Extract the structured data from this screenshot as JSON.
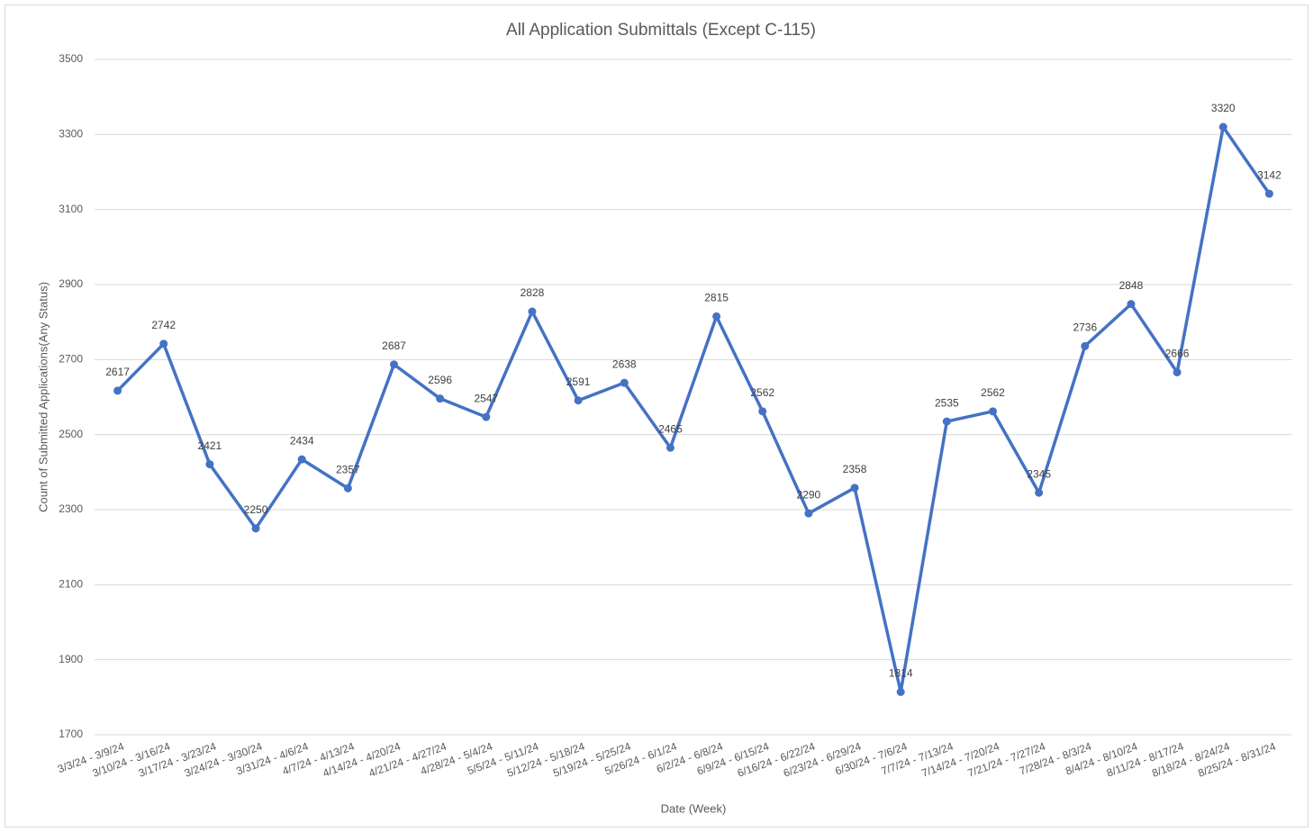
{
  "chart_data": {
    "type": "line",
    "title": "All Application Submittals (Except C-115)",
    "x_label": "Date (Week)",
    "y_label": "Count of Submitted Applications(Any Status)",
    "categories": [
      "3/3/24 - 3/9/24",
      "3/10/24 - 3/16/24",
      "3/17/24 - 3/23/24",
      "3/24/24 - 3/30/24",
      "3/31/24 - 4/6/24",
      "4/7/24 - 4/13/24",
      "4/14/24 - 4/20/24",
      "4/21/24 - 4/27/24",
      "4/28/24 - 5/4/24",
      "5/5/24 - 5/11/24",
      "5/12/24 - 5/18/24",
      "5/19/24 - 5/25/24",
      "5/26/24 - 6/1/24",
      "6/2/24 - 6/8/24",
      "6/9/24 - 6/15/24",
      "6/16/24 - 6/22/24",
      "6/23/24 - 6/29/24",
      "6/30/24 - 7/6/24",
      "7/7/24 - 7/13/24",
      "7/14/24 - 7/20/24",
      "7/21/24 - 7/27/24",
      "7/28/24 - 8/3/24",
      "8/4/24 - 8/10/24",
      "8/11/24 - 8/17/24",
      "8/18/24 - 8/24/24",
      "8/25/24 - 8/31/24"
    ],
    "values": [
      2617,
      2742,
      2421,
      2250,
      2434,
      2357,
      2687,
      2596,
      2547,
      2828,
      2591,
      2638,
      2465,
      2815,
      2562,
      2290,
      2358,
      1814,
      2535,
      2562,
      2345,
      2736,
      2848,
      2666,
      3320,
      3142
    ],
    "color": "#4472c4",
    "ylim": [
      1700,
      3500
    ],
    "yticks": [
      1700,
      1900,
      2100,
      2300,
      2500,
      2700,
      2900,
      3100,
      3300,
      3500
    ],
    "grid": true
  }
}
